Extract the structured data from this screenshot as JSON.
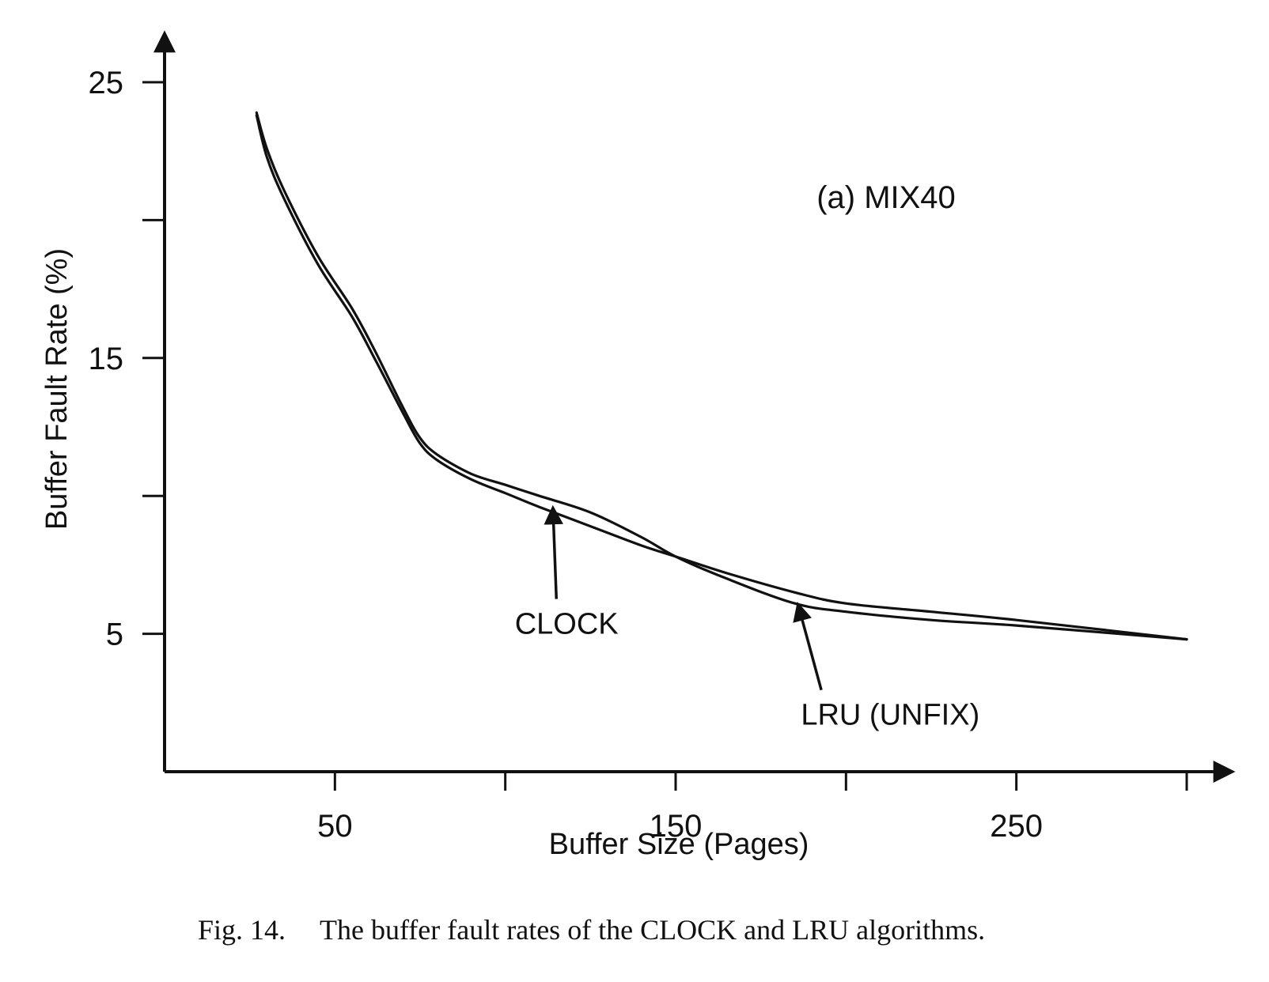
{
  "chart_data": {
    "type": "line",
    "panel_label": "(a) MIX40",
    "xlabel": "Buffer Size (Pages)",
    "ylabel": "Buffer Fault Rate (%)",
    "xlim": [
      0,
      315
    ],
    "ylim": [
      0,
      26.5
    ],
    "x_ticks": [
      0,
      50,
      100,
      150,
      200,
      250,
      300
    ],
    "x_tick_labels": [
      {
        "value": 50,
        "label": "50"
      },
      {
        "value": 150,
        "label": "150"
      },
      {
        "value": 250,
        "label": "250"
      }
    ],
    "y_ticks": [
      5,
      10,
      15,
      20,
      25
    ],
    "y_tick_labels": [
      {
        "value": 5,
        "label": "5"
      },
      {
        "value": 15,
        "label": "15"
      },
      {
        "value": 25,
        "label": "25"
      }
    ],
    "grid": false,
    "series": [
      {
        "name": "CLOCK",
        "x": [
          27,
          30,
          35,
          45,
          55,
          62,
          70,
          75,
          80,
          90,
          100,
          110,
          125,
          140,
          150,
          165,
          185,
          200,
          225,
          250,
          300
        ],
        "y": [
          23.8,
          22.3,
          20.8,
          18.4,
          16.5,
          14.9,
          13.0,
          11.9,
          11.3,
          10.6,
          10.1,
          9.6,
          8.9,
          8.2,
          7.8,
          7.2,
          6.5,
          6.1,
          5.8,
          5.5,
          4.8
        ]
      },
      {
        "name": "LRU (UNFIX)",
        "x": [
          27,
          30,
          35,
          45,
          55,
          62,
          70,
          75,
          80,
          90,
          100,
          110,
          125,
          140,
          150,
          165,
          185,
          200,
          225,
          250,
          300
        ],
        "y": [
          23.9,
          22.6,
          21.1,
          18.7,
          16.8,
          15.2,
          13.2,
          12.1,
          11.5,
          10.8,
          10.4,
          10.0,
          9.4,
          8.5,
          7.8,
          7.0,
          6.1,
          5.8,
          5.5,
          5.3,
          4.8
        ]
      }
    ],
    "annotations": [
      {
        "text": "CLOCK",
        "x": 114,
        "y": 9.7,
        "label_x": 118,
        "label_y": 5.0
      },
      {
        "text": "LRU (UNFIX)",
        "x": 186,
        "y": 6.2,
        "label_x": 213,
        "label_y": 1.7
      }
    ]
  },
  "caption": {
    "figure_number": "Fig. 14.",
    "text": "The buffer fault rates of the CLOCK and LRU algorithms."
  }
}
